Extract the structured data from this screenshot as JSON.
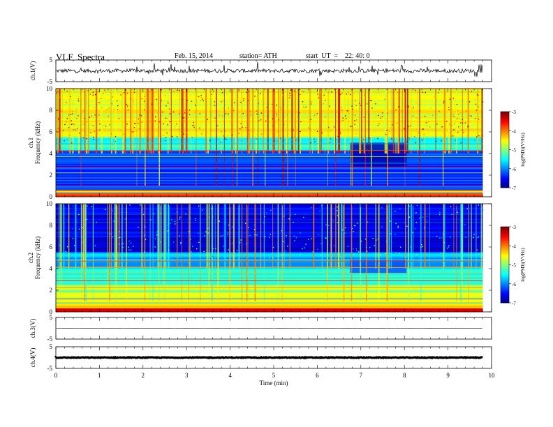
{
  "header": {
    "title": "VLF  Spectra",
    "date": "Feb. 15, 2014",
    "station": "station= ATH",
    "start": "start  UT  =    22: 40: 0"
  },
  "chart_data": [
    {
      "type": "line",
      "panel": "ch1-waveform",
      "ylabel": "ch.1(V)",
      "ylim": [
        -5,
        5
      ],
      "yticks": [
        "5",
        "-5"
      ],
      "xlim": [
        0,
        10
      ],
      "baseline": 0
    },
    {
      "type": "heatmap",
      "panel": "ch1-spectrogram",
      "ylabel": "Frequency  (kHz)",
      "channel_label": "ch.1",
      "ylim": [
        0,
        10
      ],
      "yticks": [
        "0",
        "2",
        "4",
        "6",
        "8",
        "10"
      ],
      "xlim": [
        0,
        10
      ],
      "data_end_min": 9.8,
      "colorbar": {
        "label": "log(PSD)(V²/Hz)",
        "range": [
          -7,
          -3
        ],
        "ticks": [
          "-3",
          "-4",
          "-5",
          "-6",
          "-7"
        ]
      }
    },
    {
      "type": "heatmap",
      "panel": "ch2-spectrogram",
      "ylabel": "Frequency  (kHz)",
      "channel_label": "ch.2",
      "ylim": [
        0,
        10
      ],
      "yticks": [
        "0",
        "2",
        "4",
        "6",
        "8",
        "10"
      ],
      "xlim": [
        0,
        10
      ],
      "data_end_min": 9.8,
      "colorbar": {
        "label": "log(PSD)(V²/Hz)",
        "range": [
          -7,
          -3
        ],
        "ticks": [
          "-3",
          "-4",
          "-5",
          "-6",
          "-7"
        ]
      }
    },
    {
      "type": "line",
      "panel": "ch3-waveform",
      "ylabel": "ch.3(V)",
      "ylim": [
        -5,
        5
      ],
      "yticks": [
        "5",
        "-5"
      ],
      "xlim": [
        0,
        10
      ],
      "baseline": 0
    },
    {
      "type": "line",
      "panel": "ch4-waveform",
      "ylabel": "ch.4(V)",
      "ylim": [
        -5,
        5
      ],
      "yticks": [
        "5",
        "-5"
      ],
      "xlim": [
        0,
        10
      ],
      "baseline": 0
    }
  ],
  "x_axis": {
    "label": "Time  (min)",
    "ticks": [
      "0",
      "1",
      "2",
      "3",
      "4",
      "5",
      "6",
      "7",
      "8",
      "9",
      "10"
    ]
  }
}
